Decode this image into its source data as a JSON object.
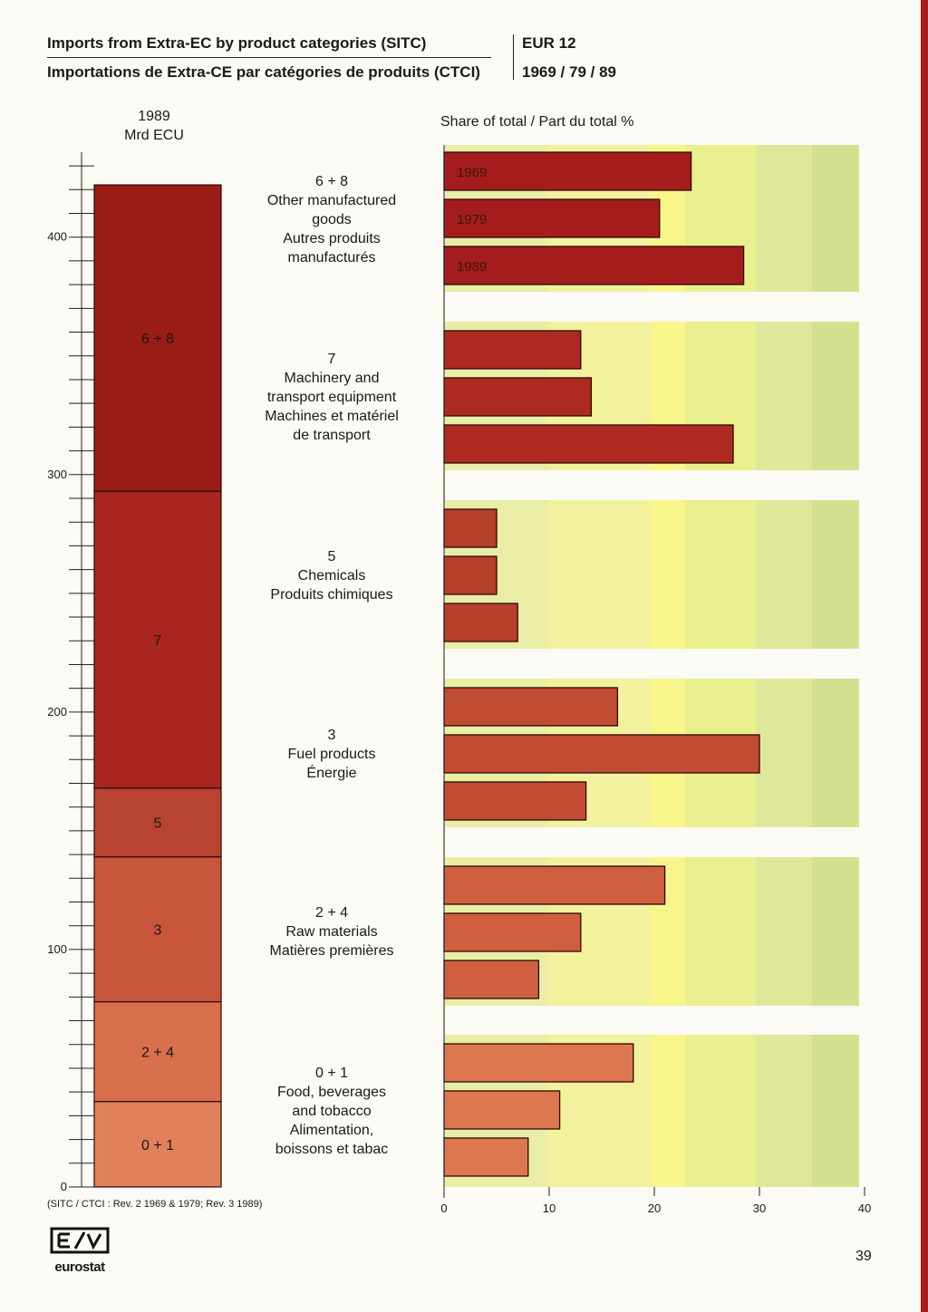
{
  "header": {
    "title_en": "Imports from Extra-EC by product categories (SITC)",
    "title_fr": "Importations de Extra-CE par catégories de produits (CTCI)",
    "region": "EUR 12",
    "years": "1969 / 79 / 89"
  },
  "page_number": "39",
  "logo_text": "eurostat",
  "footnote": "(SITC / CTCI : Rev. 2 1969 & 1979; Rev. 3 1989)",
  "chart_data": [
    {
      "type": "bar",
      "subtype": "stacked-column",
      "title": "1989\nMrd ECU",
      "year_label": "1989",
      "unit_label": "Mrd ECU",
      "ylim": [
        0,
        435
      ],
      "yticks": [
        0,
        100,
        200,
        300,
        400
      ],
      "ytick_labels": [
        "0",
        "100",
        "200",
        "300",
        "400"
      ],
      "segments": [
        {
          "code": "0 + 1",
          "value": 36,
          "color": "#e0815a"
        },
        {
          "code": "2 + 4",
          "value": 42,
          "color": "#d8704d"
        },
        {
          "code": "3",
          "value": 61,
          "color": "#c7553a"
        },
        {
          "code": "5",
          "value": 29,
          "color": "#b74330"
        },
        {
          "code": "7",
          "value": 125,
          "color": "#a8261f"
        },
        {
          "code": "6 + 8",
          "value": 129,
          "color": "#9a1c17"
        }
      ]
    },
    {
      "type": "bar",
      "orientation": "horizontal",
      "title": "Share of total / Part du total  %",
      "xlim": [
        0,
        40
      ],
      "xticks": [
        0,
        10,
        20,
        30,
        40
      ],
      "xtick_labels": [
        "0",
        "10",
        "20",
        "30",
        "40"
      ],
      "series_names": [
        "1969",
        "1979",
        "1989"
      ],
      "categories": [
        {
          "code": "6 + 8",
          "label_en": [
            "Other manufactured",
            "goods"
          ],
          "label_fr": [
            "Autres produits",
            "manufacturés"
          ],
          "values": [
            23.5,
            20.5,
            28.5
          ],
          "color": "#a51c1c"
        },
        {
          "code": "7",
          "label_en": [
            "Machinery and",
            "transport equipment"
          ],
          "label_fr": [
            "Machines et matériel",
            "de transport"
          ],
          "values": [
            13,
            14,
            27.5
          ],
          "color": "#ad2a20"
        },
        {
          "code": "5",
          "label_en": [
            "Chemicals"
          ],
          "label_fr": [
            "Produits chimiques"
          ],
          "values": [
            5,
            5,
            7
          ],
          "color": "#b7402c"
        },
        {
          "code": "3",
          "label_en": [
            "Fuel products"
          ],
          "label_fr": [
            "Énergie"
          ],
          "values": [
            16.5,
            30,
            13.5
          ],
          "color": "#c24b33"
        },
        {
          "code": "2 + 4",
          "label_en": [
            "Raw materials"
          ],
          "label_fr": [
            "Matières premières"
          ],
          "values": [
            21,
            13,
            9
          ],
          "color": "#cf5f40"
        },
        {
          "code": "0 + 1",
          "label_en": [
            "Food, beverages",
            "and tobacco"
          ],
          "label_fr": [
            "Alimentation,",
            "boissons et tabac"
          ],
          "values": [
            18,
            11,
            8
          ],
          "color": "#dd774f"
        }
      ],
      "background_bands": [
        "#e9eda6",
        "#f2f19d",
        "#f8f58a",
        "#eaf08f",
        "#dfe89a",
        "#d4e290",
        "#e2ea98"
      ]
    }
  ]
}
